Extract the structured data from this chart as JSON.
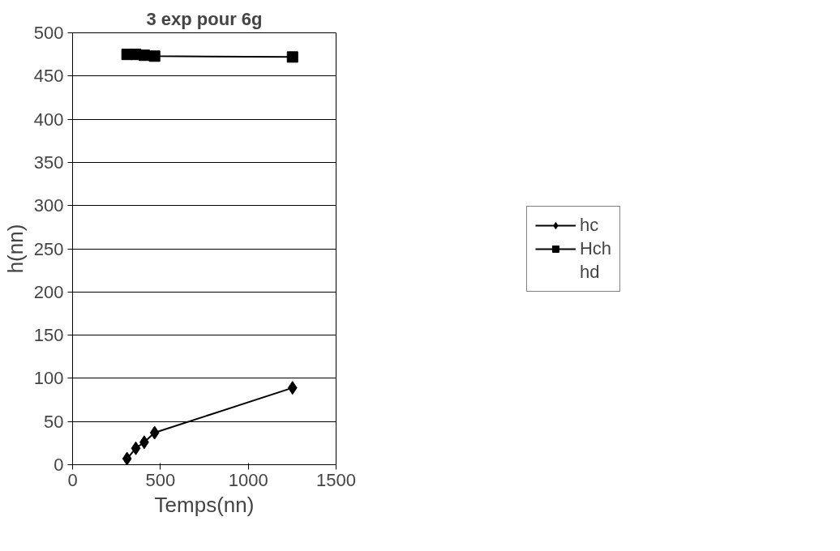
{
  "chart_data": {
    "type": "line",
    "title": "3 exp pour 6g",
    "xlabel": "Temps(nn)",
    "ylabel": "h(nn)",
    "x": [
      310,
      360,
      408,
      467,
      1252
    ],
    "series": [
      {
        "name": "hc",
        "color": "#000000",
        "marker": "diamond",
        "values": [
          7,
          19,
          26,
          37,
          89
        ]
      },
      {
        "name": "Hch",
        "color": "#000000",
        "marker": "square",
        "values": [
          475,
          475,
          474,
          473,
          472
        ]
      },
      {
        "name": "hd",
        "marker": "none",
        "values": [
          null,
          null,
          null,
          null,
          null
        ]
      }
    ],
    "xlim": [
      0,
      1500
    ],
    "xticks": [
      0,
      500,
      1000,
      1500
    ],
    "ylim": [
      0,
      500
    ],
    "yticks": [
      0,
      50,
      100,
      150,
      200,
      250,
      300,
      350,
      400,
      450,
      500
    ],
    "grid": "y",
    "legend": "right",
    "line_style": "solid"
  }
}
